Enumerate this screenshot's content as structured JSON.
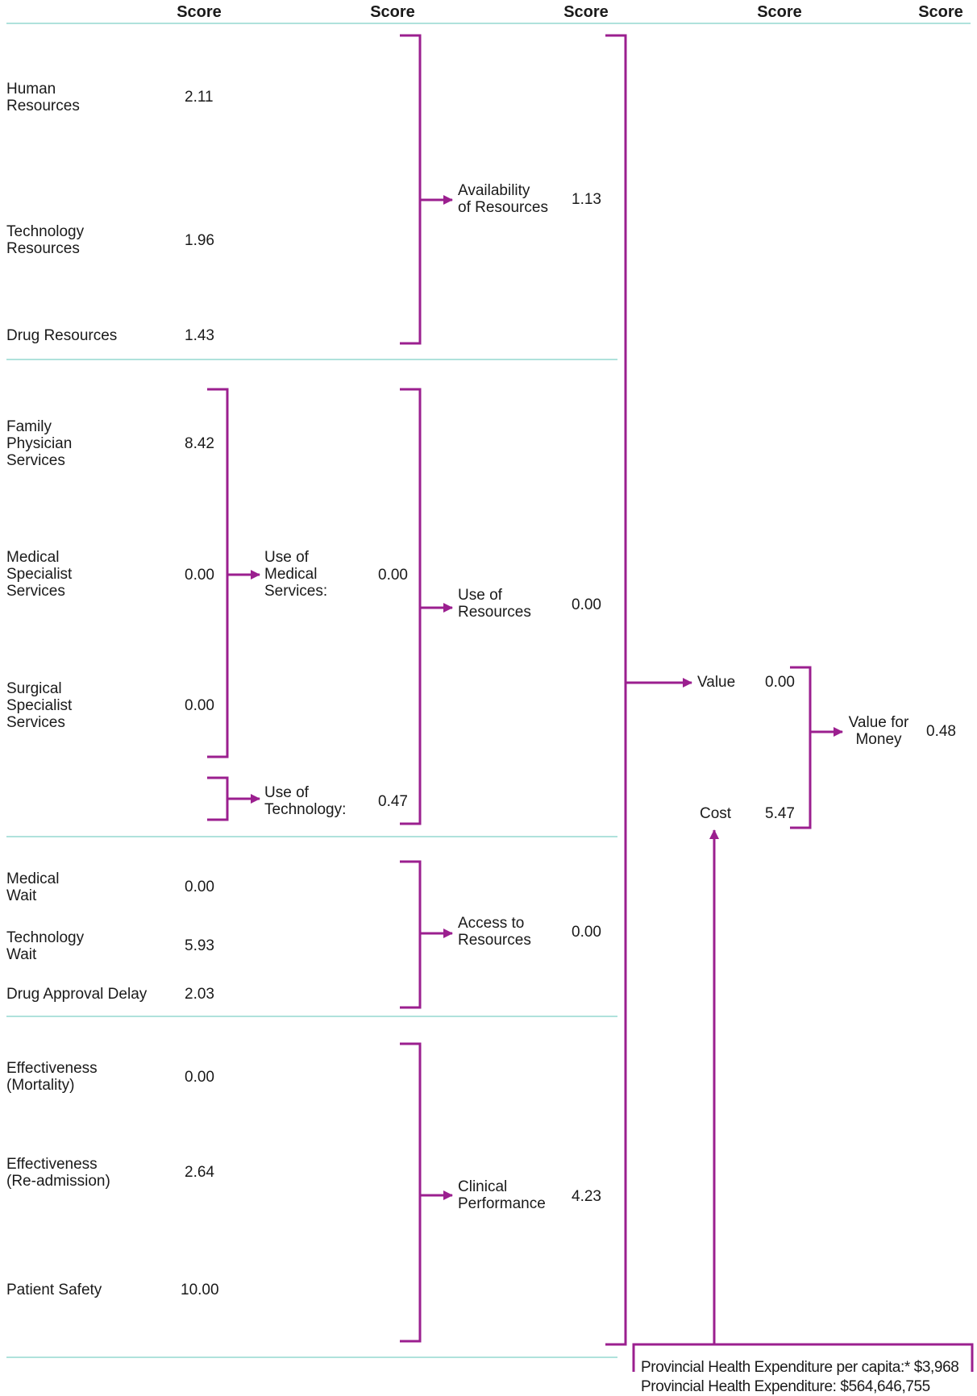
{
  "headers": [
    "Score",
    "Score",
    "Score",
    "Score",
    "Score"
  ],
  "indicators": [
    {
      "label": "Human\nResources",
      "score": "2.11"
    },
    {
      "label": "Technology\nResources",
      "score": "1.96"
    },
    {
      "label": "Drug Resources",
      "score": "1.43"
    },
    {
      "label": "Family\nPhysician\nServices",
      "score": "8.42"
    },
    {
      "label": "Medical\nSpecialist\nServices",
      "score": "0.00"
    },
    {
      "label": "Surgical\nSpecialist\nServices",
      "score": "0.00"
    },
    {
      "label": "Medical\nWait",
      "score": "0.00"
    },
    {
      "label": "Technology\nWait",
      "score": "5.93"
    },
    {
      "label": "Drug Approval Delay",
      "score": "2.03"
    },
    {
      "label": "Effectiveness\n(Mortality)",
      "score": "0.00"
    },
    {
      "label": "Effectiveness\n(Re-admission)",
      "score": "2.64"
    },
    {
      "label": "Patient Safety",
      "score": "10.00"
    }
  ],
  "subcategories": [
    {
      "label": "Use of\nMedical\nServices:",
      "score": "0.00"
    },
    {
      "label": "Use of\nTechnology:",
      "score": "0.47"
    }
  ],
  "categories": [
    {
      "label": "Availability\nof Resources",
      "score": "1.13"
    },
    {
      "label": "Use of\nResources",
      "score": "0.00"
    },
    {
      "label": "Access to\nResources",
      "score": "0.00"
    },
    {
      "label": "Clinical\nPerformance",
      "score": "4.23"
    }
  ],
  "value": {
    "label": "Value",
    "score": "0.00"
  },
  "cost": {
    "label": "Cost",
    "score": "5.47"
  },
  "value_for_money": {
    "label": "Value for\nMoney",
    "score": "0.48"
  },
  "expenditure": {
    "per_capita": "Provincial Health Expenditure per capita:* $3,968",
    "total": "Provincial Health Expenditure: $564,646,755"
  },
  "colors": {
    "bracket": "#9b1f8f",
    "rule": "#7fd1c8",
    "text": "#1a1a1a"
  }
}
